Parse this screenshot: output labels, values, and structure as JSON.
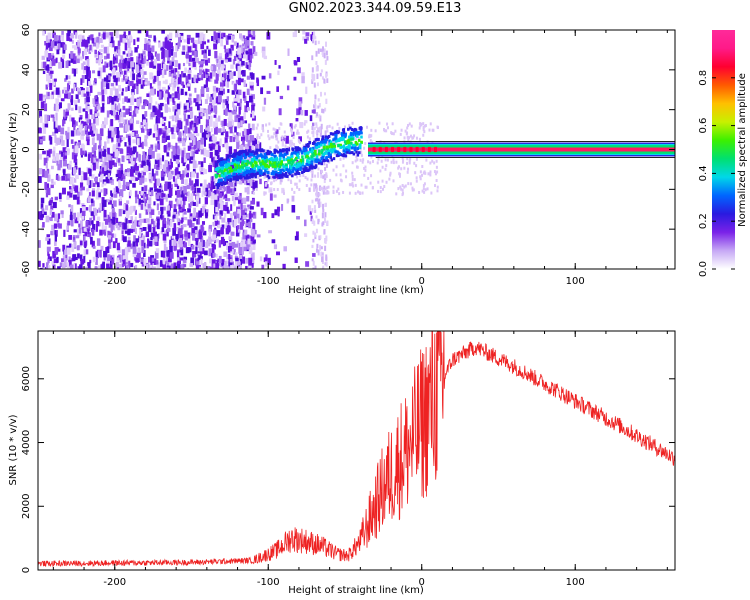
{
  "title": "GN02.2023.344.09.59.E13",
  "chart_data": [
    {
      "type": "heatmap",
      "xlabel": "Height of straight line (km)",
      "ylabel": "Frequency (Hz)",
      "xlim": [
        -250,
        165
      ],
      "ylim": [
        -60,
        60
      ],
      "xticks": [
        -200,
        -100,
        0,
        100
      ],
      "yticks": [
        -60,
        -40,
        -20,
        0,
        20,
        40,
        60
      ],
      "colorbar": {
        "label": "Normalized spectral amplitude",
        "range": [
          0,
          1
        ],
        "ticks": [
          "0.0",
          "0.2",
          "0.4",
          "0.6",
          "0.8"
        ],
        "colors": [
          "#ffffff",
          "#c6a8f5",
          "#7a22e8",
          "#2a1ae0",
          "#0066ff",
          "#00d8e8",
          "#00e070",
          "#3cf000",
          "#c8f000",
          "#ffc000",
          "#ff5a00",
          "#ff0030",
          "#ff1a88",
          "#ff2a9a"
        ]
      },
      "regions": [
        {
          "x_range": [
            -250,
            -110
          ],
          "f_range": [
            -60,
            60
          ],
          "amplitude": 0.15,
          "note_color": "#7a22e8"
        },
        {
          "x_range": [
            -135,
            -40
          ],
          "f_center_start": -12,
          "f_center_end": 4,
          "amplitude": 0.35
        },
        {
          "x_range": [
            -35,
            165
          ],
          "f_center": 0,
          "amplitude": 0.9
        }
      ]
    },
    {
      "type": "line",
      "xlabel": "Height of straight line (km)",
      "ylabel": "SNR (10 * v/v)",
      "xlim": [
        -250,
        165
      ],
      "ylim": [
        0,
        7500
      ],
      "xticks": [
        -200,
        -100,
        0,
        100
      ],
      "yticks": [
        0,
        2000,
        4000,
        6000
      ],
      "series": [
        {
          "color": "#ee2222",
          "x": [
            -250,
            -200,
            -150,
            -110,
            -95,
            -85,
            -75,
            -65,
            -55,
            -48,
            -40,
            -32,
            -25,
            -15,
            -5,
            0,
            10,
            20,
            35,
            60,
            100,
            130,
            165
          ],
          "y": [
            200,
            220,
            240,
            300,
            600,
            1000,
            900,
            750,
            500,
            450,
            900,
            1800,
            2600,
            3400,
            4100,
            4600,
            5600,
            6600,
            7000,
            6400,
            5300,
            4500,
            3500
          ]
        }
      ]
    }
  ]
}
